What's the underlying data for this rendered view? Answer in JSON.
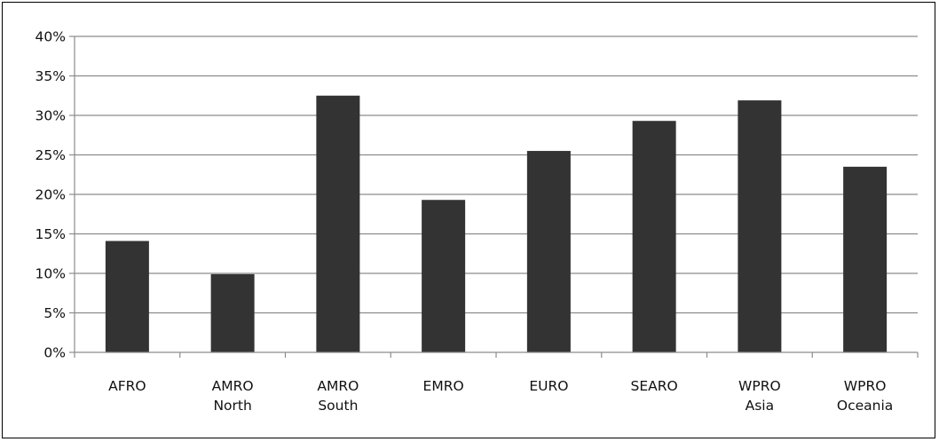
{
  "chart_data": {
    "type": "bar",
    "title": "",
    "xlabel": "",
    "ylabel": "",
    "categories": [
      [
        "AFRO"
      ],
      [
        "AMRO",
        "North"
      ],
      [
        "AMRO",
        "South"
      ],
      [
        "EMRO"
      ],
      [
        "EURO"
      ],
      [
        "SEARO"
      ],
      [
        "WPRO",
        "Asia"
      ],
      [
        "WPRO",
        "Oceania"
      ]
    ],
    "values": [
      14.1,
      9.9,
      32.5,
      19.3,
      25.5,
      29.3,
      31.9,
      23.5
    ],
    "ylim": [
      0,
      40
    ],
    "yticks": [
      "0%",
      "5%",
      "10%",
      "15%",
      "20%",
      "25%",
      "30%",
      "35%",
      "40%"
    ],
    "grid": true,
    "legend": "none",
    "bar_color": "#333333",
    "grid_color": "#8c8c8c"
  }
}
